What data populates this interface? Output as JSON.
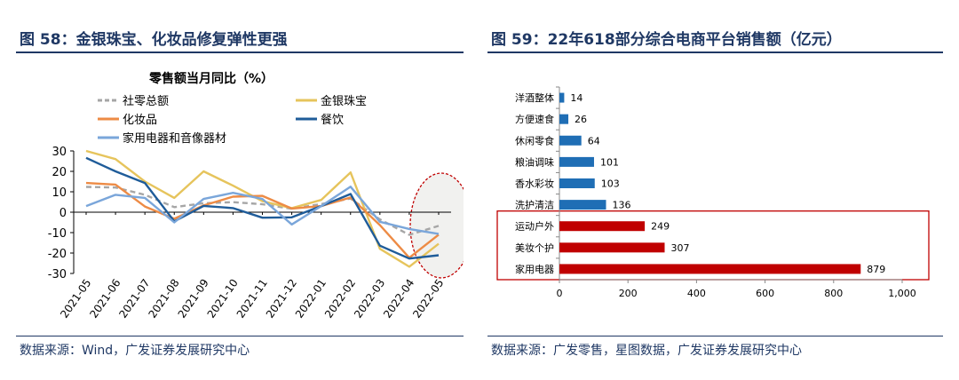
{
  "left_panel": {
    "figure_title": "图 58：金银珠宝、化妆品修复弹性更强",
    "source": "数据来源：Wind，广发证券发展研究中心"
  },
  "right_panel": {
    "figure_title": "图 59：22年618部分综合电商平台销售额（亿元）",
    "source": "数据来源：广发零售，星图数据，广发证券发展研究中心"
  },
  "colors": {
    "title_navy": "#1f3864",
    "highlight_red": "#c00000",
    "bar_blue": "#1f6eb5",
    "bar_red": "#c00000"
  },
  "chart_data": [
    {
      "type": "line",
      "title": "零售额当月同比（%）",
      "xlabel": "",
      "ylabel": "",
      "ylim": [
        -30,
        30
      ],
      "yticks": [
        30,
        20,
        10,
        0,
        -10,
        -20,
        -30
      ],
      "x": [
        "2021-05",
        "2021-06",
        "2021-07",
        "2021-08",
        "2021-09",
        "2021-10",
        "2021-11",
        "2021-12",
        "2022-01",
        "2022-02",
        "2022-03",
        "2022-04",
        "2022-05"
      ],
      "series": [
        {
          "name": "社零总额",
          "color": "#a6a6a6",
          "dashed": true,
          "values": [
            12.4,
            12.1,
            8.5,
            2.5,
            4.4,
            4.9,
            3.9,
            1.7,
            4,
            6.7,
            -3.5,
            -11.1,
            -6.7
          ]
        },
        {
          "name": "金银珠宝",
          "color": "#e6c45c",
          "dashed": false,
          "values": [
            30,
            26,
            15,
            7,
            20,
            13,
            5.4,
            2,
            6,
            19.5,
            -17.9,
            -26.7,
            -15.5
          ]
        },
        {
          "name": "化妆品",
          "color": "#ed8b45",
          "dashed": false,
          "values": [
            14.3,
            13.5,
            2.8,
            -3.2,
            3.3,
            7.6,
            8,
            1.8,
            3,
            7.2,
            -6.3,
            -22.3,
            -11
          ]
        },
        {
          "name": "餐饮",
          "color": "#1f5c99",
          "dashed": false,
          "values": [
            26.6,
            20,
            14.3,
            -4.5,
            3.1,
            2,
            -2.7,
            -2.5,
            3,
            8.9,
            -16.4,
            -22.7,
            -21.1
          ]
        },
        {
          "name": "家用电器和音像器材",
          "color": "#7aa6da",
          "dashed": false,
          "values": [
            3,
            8.5,
            7,
            -5,
            6.5,
            9.5,
            6.5,
            -6,
            3,
            12.5,
            -4.7,
            -8.2,
            -10.6
          ]
        }
      ]
    },
    {
      "type": "bar",
      "orientation": "horizontal",
      "title": "",
      "categories": [
        "洋酒整体",
        "方便速食",
        "休闲零食",
        "粮油调味",
        "香水彩妆",
        "洗护清洁",
        "运动户外",
        "美妆个护",
        "家用电器"
      ],
      "values": [
        14,
        26,
        64,
        101,
        103,
        136,
        249,
        307,
        879
      ],
      "value_labels": [
        "14",
        "26",
        "64",
        "101",
        "103",
        "136",
        "249",
        "307",
        "879"
      ],
      "highlighted": [
        false,
        false,
        false,
        false,
        false,
        false,
        true,
        true,
        true
      ],
      "xlim": [
        0,
        1000
      ],
      "xticks": [
        "0",
        "200",
        "400",
        "600",
        "800",
        "1,000"
      ],
      "xlabel": "",
      "ylabel": ""
    }
  ]
}
